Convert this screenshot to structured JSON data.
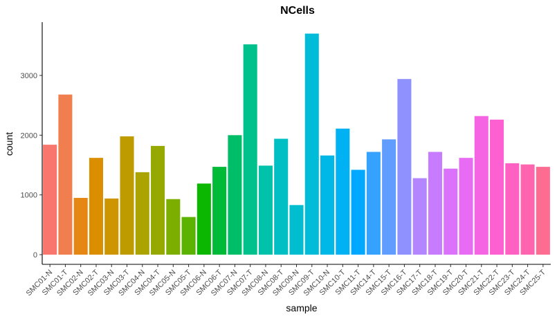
{
  "chart_data": {
    "type": "bar",
    "title": "NCells",
    "xlabel": "sample",
    "ylabel": "count",
    "ylim": [
      0,
      3700
    ],
    "yticks": [
      0,
      1000,
      2000,
      3000
    ],
    "grid": false,
    "legend": "none",
    "categories": [
      "SMC01-N",
      "SMC01-T",
      "SMC02-N",
      "SMC02-T",
      "SMC03-N",
      "SMC03-T",
      "SMC04-N",
      "SMC04-T",
      "SMC05-N",
      "SMC05-T",
      "SMC06-N",
      "SMC06-T",
      "SMC07-N",
      "SMC07-T",
      "SMC08-N",
      "SMC08-T",
      "SMC09-N",
      "SMC09-T",
      "SMC10-N",
      "SMC10-T",
      "SMC11-T",
      "SMC14-T",
      "SMC15-T",
      "SMC16-T",
      "SMC17-T",
      "SMC18-T",
      "SMC19-T",
      "SMC20-T",
      "SMC21-T",
      "SMC22-T",
      "SMC23-T",
      "SMC24-T",
      "SMC25-T"
    ],
    "values": [
      1840,
      2680,
      950,
      1620,
      940,
      1980,
      1380,
      1820,
      930,
      630,
      1190,
      1470,
      2000,
      3520,
      1490,
      1940,
      830,
      3700,
      1660,
      2110,
      1420,
      1720,
      1930,
      2940,
      1280,
      1720,
      1440,
      1620,
      2320,
      2260,
      1530,
      1510,
      1470
    ],
    "colors": [
      "#F8766D",
      "#F07E4F",
      "#E68613",
      "#DA8E00",
      "#CD9600",
      "#BE9C00",
      "#ABA300",
      "#96A900",
      "#7CAE00",
      "#5BB300",
      "#0CB702",
      "#00BA38",
      "#00BE67",
      "#00C08B",
      "#00C1A9",
      "#00BFC4",
      "#00BDD0",
      "#00BCD8",
      "#00B8E7",
      "#00B2F3",
      "#00A9FF",
      "#35A2FF",
      "#619CFF",
      "#8F91FF",
      "#B385FF",
      "#C77CFF",
      "#DB72FB",
      "#E76BF3",
      "#F564E3",
      "#FD61D1",
      "#FF61C3",
      "#FF65AE",
      "#FF6C91"
    ]
  }
}
